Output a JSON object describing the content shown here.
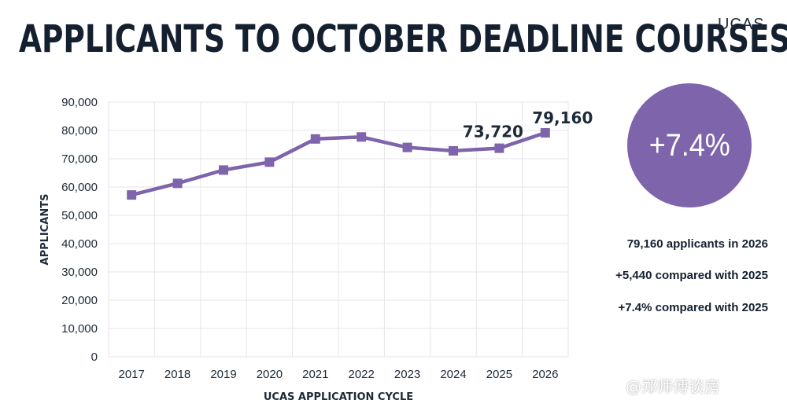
{
  "header": {
    "title": "APPLICANTS TO OCTOBER DEADLINE COURSES",
    "logo": "UCAS"
  },
  "chart_data": {
    "type": "line",
    "title": "APPLICANTS TO OCTOBER DEADLINE COURSES",
    "xlabel": "UCAS APPLICATION CYCLE",
    "ylabel": "APPLICANTS",
    "categories": [
      "2017",
      "2018",
      "2019",
      "2020",
      "2021",
      "2022",
      "2023",
      "2024",
      "2025",
      "2026"
    ],
    "values": [
      57200,
      61300,
      66000,
      68800,
      77000,
      77700,
      74000,
      72800,
      73720,
      79160
    ],
    "ylim": [
      0,
      90000
    ],
    "yticks": [
      0,
      10000,
      20000,
      30000,
      40000,
      50000,
      60000,
      70000,
      80000,
      90000
    ],
    "ytick_labels": [
      "0",
      "10,000",
      "20,000",
      "30,000",
      "40,000",
      "50,000",
      "60,000",
      "70,000",
      "80,000",
      "90,000"
    ],
    "data_labels": [
      {
        "category": "2025",
        "text": "73,720"
      },
      {
        "category": "2026",
        "text": "79,160"
      }
    ],
    "grid": true,
    "line_color": "#7e64ab"
  },
  "highlight": {
    "value": "+7.4%",
    "color": "#7e64ab"
  },
  "stats": [
    "79,160 applicants in 2026",
    "+5,440 compared with 2025",
    "+7.4% compared with 2025"
  ],
  "watermark": "@郑师傅谈房"
}
